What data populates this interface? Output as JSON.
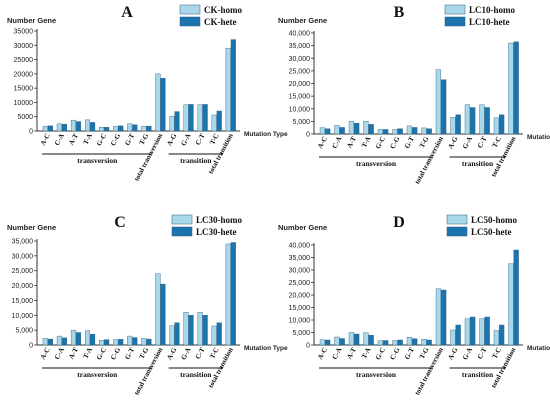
{
  "colors": {
    "homo": "#a9d8ea",
    "hete": "#1b74ad",
    "axis": "#333333"
  },
  "chart_data": [
    {
      "type": "bar",
      "panel_letter": "A",
      "ylabel": "Number Gene",
      "xlabel": "Mutation Type",
      "ylim": [
        0,
        35000
      ],
      "yticks": [
        "0",
        "5000",
        "10000",
        "15000",
        "20000",
        "25000",
        "30000",
        "35000"
      ],
      "categories": [
        "A-C",
        "C-A",
        "A-T",
        "T-A",
        "G-C",
        "C-G",
        "G-T",
        "T-G",
        "total transversion",
        "A-G",
        "G-A",
        "C-T",
        "T-C",
        "total transition"
      ],
      "groups": [
        {
          "label": "transversion",
          "from": 0,
          "to": 7
        },
        {
          "label": "transition",
          "from": 9,
          "to": 12
        }
      ],
      "series": [
        {
          "name": "CK-homo",
          "values": [
            1700,
            2500,
            3800,
            3900,
            1300,
            1600,
            2500,
            1700,
            20000,
            5200,
            9200,
            9200,
            5600,
            29000
          ]
        },
        {
          "name": "CK-hete",
          "values": [
            1800,
            2400,
            3300,
            3000,
            1300,
            1800,
            2200,
            1700,
            18500,
            6800,
            9300,
            9300,
            7000,
            32000
          ]
        }
      ]
    },
    {
      "type": "bar",
      "panel_letter": "B",
      "ylabel": "Number Gene",
      "xlabel": "Mutation Type",
      "ylim": [
        0,
        40000
      ],
      "yticks": [
        "0",
        "5,000",
        "10,000",
        "15,000",
        "20,000",
        "25,000",
        "30,000",
        "35,000",
        "40,000"
      ],
      "categories": [
        "A-C",
        "C-A",
        "A-T",
        "T-A",
        "G-C",
        "C-G",
        "G-T",
        "T-G",
        "total transversion",
        "A-G",
        "G-A",
        "C-T",
        "T-C",
        "total transition"
      ],
      "groups": [
        {
          "label": "transversion",
          "from": 0,
          "to": 7
        },
        {
          "label": "transition",
          "from": 9,
          "to": 12
        }
      ],
      "series": [
        {
          "name": "LC10-homo",
          "values": [
            2500,
            3400,
            5100,
            5000,
            1800,
            1800,
            3200,
            2400,
            25500,
            6600,
            11600,
            11600,
            6400,
            36000
          ]
        },
        {
          "name": "LC10-hete",
          "values": [
            2100,
            2600,
            4300,
            3800,
            1800,
            2100,
            2600,
            2100,
            21500,
            7600,
            10500,
            10500,
            7600,
            36500
          ]
        }
      ]
    },
    {
      "type": "bar",
      "panel_letter": "C",
      "ylabel": "Number Gene",
      "xlabel": "Mutation Type",
      "ylim": [
        0,
        35000
      ],
      "yticks": [
        "0",
        "5,000",
        "10,000",
        "15,000",
        "20,000",
        "25,000",
        "30,000",
        "35,000"
      ],
      "categories": [
        "A-C",
        "C-A",
        "A-T",
        "T-A",
        "G-C",
        "C-G",
        "G-T",
        "T-G",
        "total transversion",
        "A-G",
        "G-A",
        "C-T",
        "T-C",
        "total transition"
      ],
      "groups": [
        {
          "label": "transversion",
          "from": 0,
          "to": 7
        },
        {
          "label": "transition",
          "from": 9,
          "to": 12
        }
      ],
      "series": [
        {
          "name": "LC30-homo",
          "values": [
            2200,
            3000,
            5000,
            4800,
            1600,
            1800,
            3000,
            2200,
            24000,
            6500,
            11000,
            11000,
            6400,
            34000
          ]
        },
        {
          "name": "LC30-hete",
          "values": [
            2000,
            2400,
            4200,
            3600,
            1800,
            1900,
            2500,
            2000,
            20500,
            7500,
            10000,
            10000,
            7500,
            34500
          ]
        }
      ]
    },
    {
      "type": "bar",
      "panel_letter": "D",
      "ylabel": "Number Gene",
      "xlabel": "Mutation Type",
      "ylim": [
        0,
        40000
      ],
      "yticks": [
        "0",
        "5,000",
        "10,000",
        "15,000",
        "20,000",
        "25,000",
        "30,000",
        "35,000",
        "40,000"
      ],
      "categories": [
        "A-C",
        "C-A",
        "A-T",
        "T-A",
        "G-C",
        "C-G",
        "G-T",
        "T-G",
        "total transversion",
        "A-G",
        "G-A",
        "C-T",
        "T-C",
        "total transition"
      ],
      "groups": [
        {
          "label": "transversion",
          "from": 0,
          "to": 7
        },
        {
          "label": "transition",
          "from": 9,
          "to": 12
        }
      ],
      "series": [
        {
          "name": "LC50-homo",
          "values": [
            2100,
            3200,
            5000,
            4900,
            1700,
            1800,
            3100,
            2300,
            22500,
            6000,
            10500,
            10500,
            5800,
            32500
          ]
        },
        {
          "name": "LC50-hete",
          "values": [
            2000,
            2600,
            4400,
            3900,
            1800,
            2000,
            2500,
            2000,
            22000,
            8000,
            11200,
            11200,
            8000,
            38000
          ]
        }
      ]
    }
  ]
}
